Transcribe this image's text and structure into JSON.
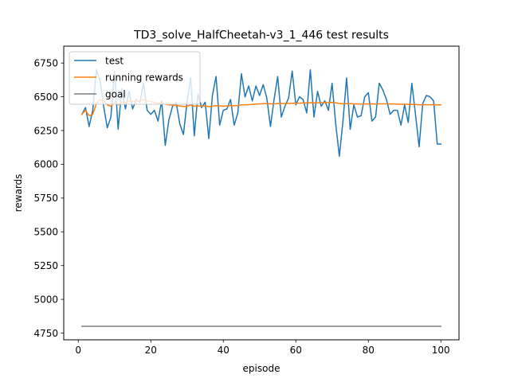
{
  "chart_data": {
    "type": "line",
    "title": "TD3_solve_HalfCheetah-v3_1_446 test results",
    "xlabel": "episode",
    "ylabel": "rewards",
    "xlim": [
      -4,
      105
    ],
    "ylim": [
      4700,
      6875
    ],
    "xticks": [
      0,
      20,
      40,
      60,
      80,
      100
    ],
    "yticks": [
      4750,
      5000,
      5250,
      5500,
      5750,
      6000,
      6250,
      6500,
      6750
    ],
    "legend_position": "upper-left",
    "colors": {
      "test": "#1f77b4",
      "running": "#ff7f0e",
      "goal": "#7f7f7f"
    },
    "series": [
      {
        "name": "test",
        "key": "test",
        "x": [
          1,
          2,
          3,
          4,
          5,
          6,
          7,
          8,
          9,
          10,
          11,
          12,
          13,
          14,
          15,
          16,
          17,
          18,
          19,
          20,
          21,
          22,
          23,
          24,
          25,
          26,
          27,
          28,
          29,
          30,
          31,
          32,
          33,
          34,
          35,
          36,
          37,
          38,
          39,
          40,
          41,
          42,
          43,
          44,
          45,
          46,
          47,
          48,
          49,
          50,
          51,
          52,
          53,
          54,
          55,
          56,
          57,
          58,
          59,
          60,
          61,
          62,
          63,
          64,
          65,
          66,
          67,
          68,
          69,
          70,
          71,
          72,
          73,
          74,
          75,
          76,
          77,
          78,
          79,
          80,
          81,
          82,
          83,
          84,
          85,
          86,
          87,
          88,
          89,
          90,
          91,
          92,
          93,
          94,
          95,
          96,
          97,
          98,
          99,
          100
        ],
        "values": [
          6370,
          6420,
          6280,
          6400,
          6700,
          6620,
          6430,
          6270,
          6350,
          6690,
          6260,
          6560,
          6410,
          6540,
          6410,
          6480,
          6460,
          6600,
          6400,
          6370,
          6400,
          6320,
          6470,
          6140,
          6330,
          6430,
          6460,
          6300,
          6220,
          6460,
          6640,
          6210,
          6520,
          6420,
          6460,
          6190,
          6510,
          6650,
          6290,
          6400,
          6410,
          6480,
          6290,
          6380,
          6670,
          6500,
          6580,
          6470,
          6580,
          6510,
          6590,
          6490,
          6280,
          6480,
          6650,
          6350,
          6430,
          6490,
          6690,
          6440,
          6500,
          6480,
          6380,
          6700,
          6350,
          6540,
          6430,
          6470,
          6400,
          6600,
          6300,
          6060,
          6320,
          6640,
          6260,
          6440,
          6350,
          6360,
          6500,
          6530,
          6320,
          6350,
          6600,
          6550,
          6480,
          6370,
          6400,
          6400,
          6290,
          6440,
          6310,
          6600,
          6370,
          6130,
          6450,
          6510,
          6500,
          6470,
          6150,
          6150
        ],
        "legend_label": "test"
      },
      {
        "name": "running rewards",
        "key": "running",
        "x": [
          1,
          2,
          3,
          4,
          5,
          6,
          7,
          8,
          9,
          10,
          11,
          12,
          13,
          14,
          15,
          16,
          17,
          18,
          19,
          20,
          21,
          22,
          23,
          24,
          25,
          26,
          27,
          28,
          29,
          30,
          31,
          32,
          33,
          34,
          35,
          36,
          37,
          38,
          39,
          40,
          41,
          42,
          43,
          44,
          45,
          46,
          47,
          48,
          49,
          50,
          51,
          52,
          53,
          54,
          55,
          56,
          57,
          58,
          59,
          60,
          61,
          62,
          63,
          64,
          65,
          66,
          67,
          68,
          69,
          70,
          71,
          72,
          73,
          74,
          75,
          76,
          77,
          78,
          79,
          80,
          81,
          82,
          83,
          84,
          85,
          86,
          87,
          88,
          89,
          90,
          91,
          92,
          93,
          94,
          95,
          96,
          97,
          98,
          99,
          100
        ],
        "values": [
          6370,
          6400,
          6360,
          6370,
          6450,
          6480,
          6470,
          6440,
          6430,
          6460,
          6440,
          6460,
          6455,
          6470,
          6465,
          6470,
          6468,
          6480,
          6470,
          6465,
          6460,
          6450,
          6455,
          6445,
          6440,
          6438,
          6436,
          6432,
          6428,
          6430,
          6440,
          6430,
          6432,
          6430,
          6432,
          6428,
          6430,
          6435,
          6432,
          6430,
          6432,
          6435,
          6433,
          6435,
          6440,
          6440,
          6442,
          6444,
          6446,
          6447,
          6449,
          6450,
          6448,
          6448,
          6450,
          6450,
          6450,
          6451,
          6452,
          6452,
          6453,
          6454,
          6454,
          6456,
          6455,
          6456,
          6456,
          6457,
          6457,
          6458,
          6456,
          6450,
          6448,
          6450,
          6449,
          6448,
          6447,
          6446,
          6447,
          6448,
          6447,
          6446,
          6448,
          6448,
          6448,
          6447,
          6447,
          6446,
          6445,
          6445,
          6444,
          6444,
          6443,
          6441,
          6441,
          6441,
          6441,
          6441,
          6440,
          6440
        ],
        "legend_label": "running rewards"
      },
      {
        "name": "goal",
        "key": "goal",
        "x": [
          1,
          100
        ],
        "values": [
          4800,
          4800
        ],
        "legend_label": "goal"
      }
    ]
  }
}
